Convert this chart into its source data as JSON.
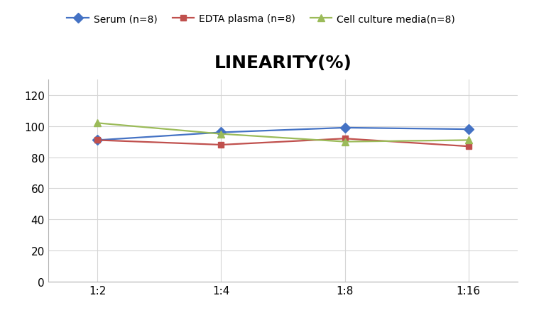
{
  "title": "LINEARITY(%)",
  "x_labels": [
    "1:2",
    "1:4",
    "1:8",
    "1:16"
  ],
  "x_positions": [
    0,
    1,
    2,
    3
  ],
  "series": [
    {
      "label": "Serum (n=8)",
      "values": [
        91,
        96,
        99,
        98
      ],
      "color": "#4472C4",
      "marker": "D",
      "markersize": 7,
      "linewidth": 1.6
    },
    {
      "label": "EDTA plasma (n=8)",
      "values": [
        91,
        88,
        92,
        87
      ],
      "color": "#C0504D",
      "marker": "s",
      "markersize": 6,
      "linewidth": 1.6
    },
    {
      "label": "Cell culture media(n=8)",
      "values": [
        102,
        95,
        90,
        91
      ],
      "color": "#9BBB59",
      "marker": "^",
      "markersize": 7,
      "linewidth": 1.6
    }
  ],
  "ylim": [
    0,
    130
  ],
  "yticks": [
    0,
    20,
    40,
    60,
    80,
    100,
    120
  ],
  "background_color": "#ffffff",
  "grid_color": "#d5d5d5",
  "title_fontsize": 18,
  "legend_fontsize": 10,
  "tick_fontsize": 11
}
